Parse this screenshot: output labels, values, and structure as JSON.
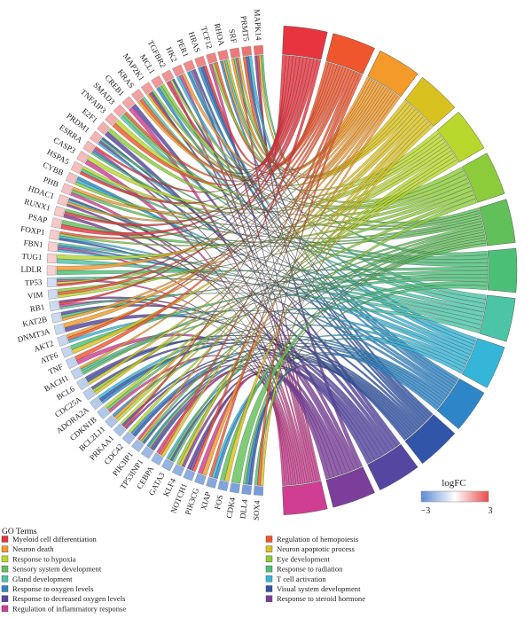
{
  "chart_data": {
    "type": "chord",
    "genes": [
      "MAPK14",
      "PRMT5",
      "SRF",
      "RHOA",
      "TCF12",
      "HRAS",
      "PER1",
      "HK2",
      "TGFBR2",
      "MCL1",
      "MAP2K1",
      "KRAS",
      "CREB1",
      "SMAD3",
      "TNFAIP3",
      "E2F1",
      "PRDM1",
      "ESRRA",
      "CASP3",
      "HSPA5",
      "CYBB",
      "PHB",
      "HDAC1",
      "RUNX1",
      "PSAP",
      "FOXP1",
      "FBN1",
      "TUG1",
      "LDLR",
      "TP53",
      "VIM",
      "RB1",
      "KAT2B",
      "DNMT3A",
      "AKT2",
      "ATF6",
      "TNF",
      "BACH1",
      "BCL6",
      "CDC25A",
      "ADORA2A",
      "CDKN1B",
      "BCL2L11",
      "PRKAA1",
      "CDC42",
      "PIK3IP1",
      "TP53INP1",
      "CEBPA",
      "GATA3",
      "KLF4",
      "NOTCH1",
      "PIK3CG",
      "XIAP",
      "FOS",
      "CDK4",
      "DLL4",
      "SOX4"
    ],
    "logFC": [
      2.2,
      2.1,
      2.0,
      1.9,
      1.8,
      1.7,
      1.6,
      1.5,
      1.4,
      1.3,
      1.2,
      1.1,
      1.0,
      0.9,
      0.85,
      0.8,
      0.7,
      0.6,
      0.5,
      0.45,
      0.4,
      0.35,
      0.3,
      0.25,
      0.2,
      0.15,
      0.1,
      0.05,
      0.0,
      -0.1,
      -0.2,
      -0.25,
      -0.3,
      -0.35,
      -0.4,
      -0.45,
      -0.5,
      -0.55,
      -0.6,
      -0.7,
      -0.8,
      -0.9,
      -1.0,
      -1.1,
      -1.2,
      -1.3,
      -1.4,
      -1.5,
      -1.6,
      -1.7,
      -1.8,
      -1.9,
      -2.0,
      -2.1,
      -2.2,
      -2.3,
      -2.4
    ],
    "terms": [
      {
        "name": "Myeloid cell differentiation",
        "color": "#e7343f"
      },
      {
        "name": "Regulation of hemopoiesis",
        "color": "#f0562e"
      },
      {
        "name": "Neuron death",
        "color": "#f39a2a"
      },
      {
        "name": "Neuron apoptotic process",
        "color": "#d9c21f"
      },
      {
        "name": "Response to hypoxia",
        "color": "#b8d72c"
      },
      {
        "name": "Eye development",
        "color": "#8ccc3a"
      },
      {
        "name": "Sensory system development",
        "color": "#62c05a"
      },
      {
        "name": "Response to radiation",
        "color": "#4cbf77"
      },
      {
        "name": "Gland development",
        "color": "#4cc4a6"
      },
      {
        "name": "T cell activation",
        "color": "#35b6d8"
      },
      {
        "name": "Response to oxygen levels",
        "color": "#2e86c9"
      },
      {
        "name": "Visual system development",
        "color": "#3155a8"
      },
      {
        "name": "Response to decreased oxygen levels",
        "color": "#5446a1"
      },
      {
        "name": "Response to steroid hormone",
        "color": "#7b3f9b"
      },
      {
        "name": "Regulation of inflammatory response",
        "color": "#cf3e93"
      }
    ],
    "legend": {
      "title": "GO Terms",
      "left": [
        "Myeloid cell differentiation",
        "Neuron death",
        "Response to hypoxia",
        "Sensory system development",
        "Gland development",
        "Response to oxygen levels",
        "Response to decreased oxygen levels",
        "Regulation of inflammatory response"
      ],
      "right": [
        "Regulation of hemopoiesis",
        "Neuron apoptotic process",
        "Eye development",
        "Response to radiation",
        "T cell activation",
        "Visual system development",
        "Response to steroid hormone"
      ]
    },
    "colorbar": {
      "title": "logFC",
      "min": -3,
      "max": 3,
      "min_label": "−3",
      "max_label": "3",
      "low_color": "#5b8bd3",
      "mid_color": "#ffffff",
      "high_color": "#e94b4b"
    }
  }
}
